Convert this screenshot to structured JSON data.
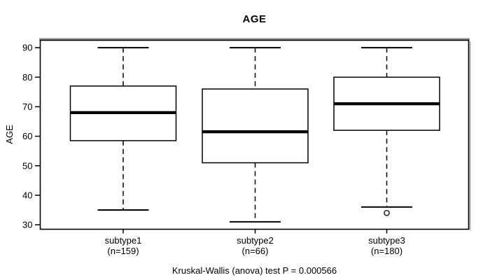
{
  "chart_data": {
    "type": "boxplot",
    "title": "AGE",
    "ylabel": "AGE",
    "xlabel": "",
    "ylim": [
      28.6,
      92.4
    ],
    "yticks": [
      30,
      40,
      50,
      60,
      70,
      80,
      90
    ],
    "grid": false,
    "categories": [
      "subtype1",
      "subtype2",
      "subtype3"
    ],
    "category_sublabels": [
      "(n=159)",
      "(n=66)",
      "(n=180)"
    ],
    "annotation": "Kruskal-Wallis (anova) test P = 0.000566",
    "series": [
      {
        "name": "subtype1",
        "n": 159,
        "whisker_low": 35,
        "q1": 58.5,
        "median": 68,
        "q3": 77,
        "whisker_high": 90,
        "outliers": []
      },
      {
        "name": "subtype2",
        "n": 66,
        "whisker_low": 31,
        "q1": 51,
        "median": 61.5,
        "q3": 76,
        "whisker_high": 90,
        "outliers": []
      },
      {
        "name": "subtype3",
        "n": 180,
        "whisker_low": 36,
        "q1": 62,
        "median": 71,
        "q3": 80,
        "whisker_high": 90,
        "outliers": [
          34
        ]
      }
    ],
    "colors": {
      "line": "#000000",
      "box_fill": "#ffffff",
      "frame_top_accent": "#8f8f8f",
      "frame_side_shadow": "#b4b4b4",
      "background": "#ffffff"
    }
  }
}
